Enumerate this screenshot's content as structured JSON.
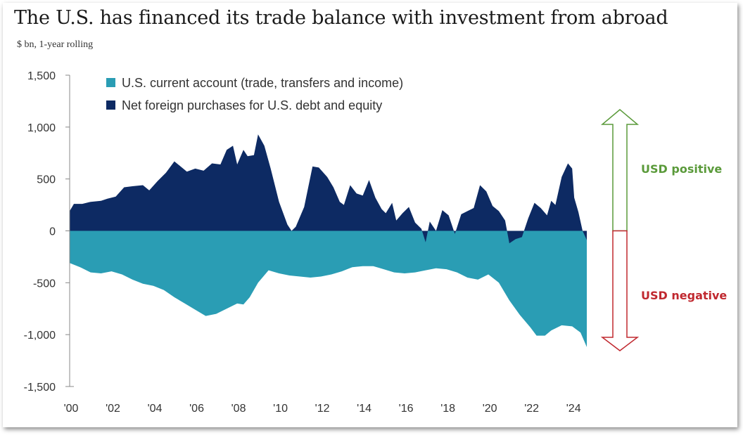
{
  "chart_data": {
    "type": "area",
    "title": "The U.S. has financed its trade balance with investment from abroad",
    "subtitle": "$ bn, 1-year rolling",
    "ylim": [
      -1500,
      1500
    ],
    "xlim": [
      2000,
      2024.7
    ],
    "y_ticks": [
      {
        "value": 1500,
        "label": "1,500"
      },
      {
        "value": 1000,
        "label": "1,000"
      },
      {
        "value": 500,
        "label": "500"
      },
      {
        "value": 0,
        "label": "0"
      },
      {
        "value": -500,
        "label": "-500"
      },
      {
        "value": -1000,
        "label": "-1,000"
      },
      {
        "value": -1500,
        "label": "-1,500"
      }
    ],
    "x_ticks": [
      {
        "value": 2000,
        "label": "'00"
      },
      {
        "value": 2002,
        "label": "'02"
      },
      {
        "value": 2004,
        "label": "'04"
      },
      {
        "value": 2006,
        "label": "'06"
      },
      {
        "value": 2008,
        "label": "'08"
      },
      {
        "value": 2010,
        "label": "'10"
      },
      {
        "value": 2012,
        "label": "'12"
      },
      {
        "value": 2014,
        "label": "'14"
      },
      {
        "value": 2016,
        "label": "'16"
      },
      {
        "value": 2018,
        "label": "'18"
      },
      {
        "value": 2020,
        "label": "'20"
      },
      {
        "value": 2022,
        "label": "'22"
      },
      {
        "value": 2024,
        "label": "'24"
      }
    ],
    "legend": {
      "position": "top-left"
    },
    "series": [
      {
        "name": "U.S. current account (trade, transfers and income)",
        "color": "#2a9db4",
        "points": [
          [
            2000.0,
            -310
          ],
          [
            2000.5,
            -350
          ],
          [
            2001.0,
            -400
          ],
          [
            2001.5,
            -410
          ],
          [
            2002.0,
            -390
          ],
          [
            2002.5,
            -420
          ],
          [
            2003.0,
            -470
          ],
          [
            2003.5,
            -510
          ],
          [
            2004.0,
            -530
          ],
          [
            2004.5,
            -570
          ],
          [
            2005.0,
            -640
          ],
          [
            2005.5,
            -700
          ],
          [
            2006.0,
            -760
          ],
          [
            2006.5,
            -820
          ],
          [
            2007.0,
            -800
          ],
          [
            2007.5,
            -750
          ],
          [
            2008.0,
            -700
          ],
          [
            2008.3,
            -710
          ],
          [
            2008.6,
            -640
          ],
          [
            2009.0,
            -500
          ],
          [
            2009.5,
            -380
          ],
          [
            2010.0,
            -410
          ],
          [
            2010.5,
            -430
          ],
          [
            2011.0,
            -440
          ],
          [
            2011.5,
            -450
          ],
          [
            2012.0,
            -440
          ],
          [
            2012.5,
            -420
          ],
          [
            2013.0,
            -390
          ],
          [
            2013.5,
            -350
          ],
          [
            2014.0,
            -340
          ],
          [
            2014.5,
            -340
          ],
          [
            2015.0,
            -370
          ],
          [
            2015.5,
            -400
          ],
          [
            2016.0,
            -410
          ],
          [
            2016.5,
            -400
          ],
          [
            2017.0,
            -380
          ],
          [
            2017.5,
            -360
          ],
          [
            2018.0,
            -370
          ],
          [
            2018.5,
            -400
          ],
          [
            2019.0,
            -450
          ],
          [
            2019.5,
            -470
          ],
          [
            2020.0,
            -420
          ],
          [
            2020.5,
            -500
          ],
          [
            2021.0,
            -670
          ],
          [
            2021.5,
            -810
          ],
          [
            2022.0,
            -930
          ],
          [
            2022.3,
            -1010
          ],
          [
            2022.7,
            -1010
          ],
          [
            2023.0,
            -960
          ],
          [
            2023.5,
            -910
          ],
          [
            2024.0,
            -920
          ],
          [
            2024.4,
            -980
          ],
          [
            2024.7,
            -1120
          ]
        ]
      },
      {
        "name": "Net foreign purchases for U.S. debt and equity",
        "color": "#0d2a63",
        "points": [
          [
            2000.0,
            190
          ],
          [
            2000.2,
            260
          ],
          [
            2000.6,
            260
          ],
          [
            2001.0,
            280
          ],
          [
            2001.5,
            290
          ],
          [
            2001.8,
            310
          ],
          [
            2002.2,
            330
          ],
          [
            2002.6,
            420
          ],
          [
            2003.0,
            430
          ],
          [
            2003.5,
            440
          ],
          [
            2003.8,
            390
          ],
          [
            2004.2,
            480
          ],
          [
            2004.6,
            560
          ],
          [
            2005.0,
            670
          ],
          [
            2005.3,
            620
          ],
          [
            2005.6,
            570
          ],
          [
            2006.0,
            600
          ],
          [
            2006.4,
            580
          ],
          [
            2006.8,
            650
          ],
          [
            2007.2,
            640
          ],
          [
            2007.5,
            780
          ],
          [
            2007.8,
            820
          ],
          [
            2008.0,
            640
          ],
          [
            2008.3,
            780
          ],
          [
            2008.5,
            720
          ],
          [
            2008.8,
            730
          ],
          [
            2009.0,
            930
          ],
          [
            2009.3,
            820
          ],
          [
            2009.6,
            600
          ],
          [
            2010.0,
            280
          ],
          [
            2010.4,
            60
          ],
          [
            2010.6,
            0
          ],
          [
            2010.8,
            40
          ],
          [
            2011.2,
            230
          ],
          [
            2011.6,
            620
          ],
          [
            2011.9,
            610
          ],
          [
            2012.3,
            520
          ],
          [
            2012.6,
            420
          ],
          [
            2012.9,
            280
          ],
          [
            2013.1,
            250
          ],
          [
            2013.4,
            440
          ],
          [
            2013.7,
            360
          ],
          [
            2014.0,
            340
          ],
          [
            2014.3,
            490
          ],
          [
            2014.6,
            320
          ],
          [
            2014.9,
            210
          ],
          [
            2015.1,
            170
          ],
          [
            2015.4,
            270
          ],
          [
            2015.6,
            100
          ],
          [
            2015.9,
            170
          ],
          [
            2016.2,
            230
          ],
          [
            2016.5,
            80
          ],
          [
            2016.8,
            20
          ],
          [
            2017.0,
            -110
          ],
          [
            2017.2,
            90
          ],
          [
            2017.5,
            0
          ],
          [
            2017.8,
            200
          ],
          [
            2018.1,
            150
          ],
          [
            2018.4,
            -30
          ],
          [
            2018.7,
            160
          ],
          [
            2019.0,
            190
          ],
          [
            2019.3,
            220
          ],
          [
            2019.6,
            440
          ],
          [
            2019.9,
            380
          ],
          [
            2020.2,
            240
          ],
          [
            2020.5,
            190
          ],
          [
            2020.8,
            100
          ],
          [
            2021.0,
            -120
          ],
          [
            2021.3,
            -80
          ],
          [
            2021.6,
            -60
          ],
          [
            2021.9,
            120
          ],
          [
            2022.2,
            270
          ],
          [
            2022.5,
            220
          ],
          [
            2022.8,
            150
          ],
          [
            2023.0,
            290
          ],
          [
            2023.2,
            250
          ],
          [
            2023.5,
            520
          ],
          [
            2023.8,
            650
          ],
          [
            2024.0,
            600
          ],
          [
            2024.1,
            320
          ],
          [
            2024.3,
            180
          ],
          [
            2024.5,
            0
          ],
          [
            2024.7,
            -90
          ]
        ]
      }
    ],
    "annotations": [
      {
        "text": "USD positive",
        "color": "#5a9a3a"
      },
      {
        "text": "USD negative",
        "color": "#c0282f"
      }
    ]
  }
}
